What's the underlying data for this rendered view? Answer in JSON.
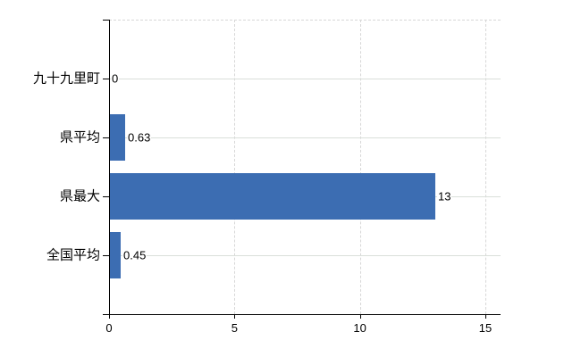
{
  "chart": {
    "colors": {
      "bar": "#3c6db2",
      "axis": "#000000",
      "vertical_gridline": "#d7d7d7",
      "row_gridline": "#dadfda",
      "text": "#000000",
      "background": "#ffffff"
    }
  },
  "chart_data": {
    "type": "bar",
    "orientation": "horizontal",
    "title": "",
    "xlabel": "",
    "ylabel": "",
    "categories": [
      "九十九里町",
      "県平均",
      "県最大",
      "全国平均"
    ],
    "values": [
      0,
      0.63,
      13,
      0.45
    ],
    "value_labels": [
      "0",
      "0.63",
      "13",
      "0.45"
    ],
    "xlim": [
      0,
      15
    ],
    "x_ticks": [
      0,
      5,
      10,
      15
    ],
    "x_tick_labels": [
      "0",
      "5",
      "10",
      "15"
    ],
    "grid": "vertical dashed gridlines at x ticks, light horizontal line at each category row",
    "legend_position": "none"
  }
}
